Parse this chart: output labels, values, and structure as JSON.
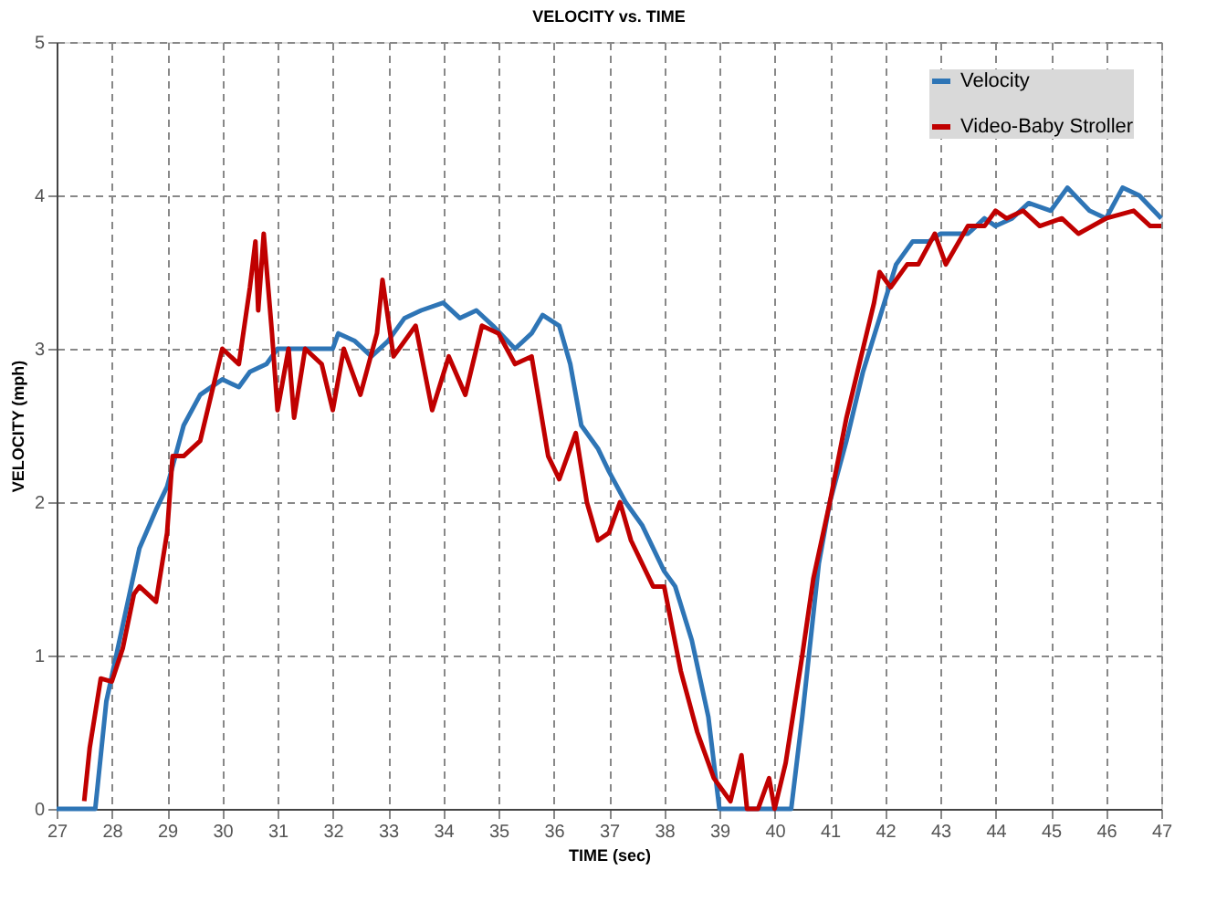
{
  "chart_data": {
    "type": "line",
    "title": "VELOCITY vs. TIME",
    "xlabel": "TIME (sec)",
    "ylabel": "VELOCITY (mph)",
    "xlim": [
      27,
      47
    ],
    "xticks": [
      27,
      28,
      29,
      30,
      31,
      32,
      33,
      34,
      35,
      36,
      37,
      38,
      39,
      40,
      41,
      42,
      43,
      44,
      45,
      46,
      47
    ],
    "ylim": [
      0,
      5
    ],
    "yticks": [
      0,
      1,
      2,
      3,
      4,
      5
    ],
    "grid": true,
    "legend": "top right",
    "line_style": "solid",
    "series": [
      {
        "name": "Velocity",
        "color": "#2e75b6",
        "x": [
          27,
          27.7,
          27.9,
          28.2,
          28.5,
          28.8,
          29.0,
          29.3,
          29.6,
          30.0,
          30.3,
          30.5,
          30.8,
          31.0,
          31.5,
          32.0,
          32.1,
          32.4,
          32.7,
          33.0,
          33.3,
          33.6,
          34.0,
          34.3,
          34.6,
          34.9,
          35.3,
          35.6,
          35.8,
          36.1,
          36.3,
          36.5,
          36.8,
          37.0,
          37.3,
          37.6,
          38.0,
          38.2,
          38.5,
          38.8,
          39.0,
          40.3,
          40.5,
          40.8,
          41.0,
          41.3,
          41.6,
          41.9,
          42.2,
          42.5,
          42.8,
          43.0,
          43.5,
          43.8,
          44.0,
          44.3,
          44.6,
          45.0,
          45.3,
          45.7,
          46.0,
          46.3,
          46.6,
          47
        ],
        "values": [
          0,
          0,
          0.7,
          1.2,
          1.7,
          1.95,
          2.1,
          2.5,
          2.7,
          2.8,
          2.75,
          2.85,
          2.9,
          3.0,
          3.0,
          3.0,
          3.1,
          3.05,
          2.95,
          3.05,
          3.2,
          3.25,
          3.3,
          3.2,
          3.25,
          3.15,
          3.0,
          3.1,
          3.22,
          3.15,
          2.9,
          2.5,
          2.35,
          2.2,
          2.0,
          1.85,
          1.55,
          1.45,
          1.1,
          0.6,
          0,
          0,
          0.6,
          1.6,
          2.0,
          2.4,
          2.85,
          3.2,
          3.55,
          3.7,
          3.7,
          3.75,
          3.75,
          3.85,
          3.8,
          3.85,
          3.95,
          3.9,
          4.05,
          3.9,
          3.85,
          4.05,
          4.0,
          3.85
        ]
      },
      {
        "name": "Video-Baby Stroller",
        "color": "#c00000",
        "x": [
          27.5,
          27.6,
          27.8,
          28.0,
          28.2,
          28.4,
          28.5,
          28.8,
          29.0,
          29.1,
          29.3,
          29.6,
          29.8,
          30.0,
          30.3,
          30.5,
          30.6,
          30.65,
          30.75,
          30.9,
          31.0,
          31.2,
          31.3,
          31.5,
          31.8,
          32.0,
          32.2,
          32.5,
          32.8,
          32.9,
          33.1,
          33.5,
          33.8,
          34.1,
          34.4,
          34.7,
          35.0,
          35.3,
          35.6,
          35.9,
          36.1,
          36.4,
          36.6,
          36.8,
          37.0,
          37.2,
          37.4,
          37.8,
          38.0,
          38.3,
          38.6,
          38.9,
          39.1,
          39.2,
          39.4,
          39.5,
          39.7,
          39.9,
          40.0,
          40.2,
          40.5,
          40.7,
          41.0,
          41.3,
          41.6,
          41.8,
          41.9,
          42.1,
          42.4,
          42.6,
          42.9,
          43.1,
          43.5,
          43.8,
          44.0,
          44.2,
          44.5,
          44.8,
          45.2,
          45.5,
          46.0,
          46.5,
          46.8,
          47
        ],
        "values": [
          0.05,
          0.4,
          0.85,
          0.83,
          1.05,
          1.4,
          1.45,
          1.35,
          1.8,
          2.3,
          2.3,
          2.4,
          2.7,
          3.0,
          2.9,
          3.4,
          3.7,
          3.25,
          3.75,
          3.1,
          2.6,
          3.0,
          2.55,
          3.0,
          2.9,
          2.6,
          3.0,
          2.7,
          3.1,
          3.45,
          2.95,
          3.15,
          2.6,
          2.95,
          2.7,
          3.15,
          3.1,
          2.9,
          2.95,
          2.3,
          2.15,
          2.45,
          2.0,
          1.75,
          1.8,
          2.0,
          1.75,
          1.45,
          1.45,
          0.9,
          0.5,
          0.2,
          0.1,
          0.05,
          0.35,
          0,
          0,
          0.2,
          0,
          0.3,
          1.0,
          1.5,
          2.0,
          2.55,
          3.0,
          3.3,
          3.5,
          3.4,
          3.55,
          3.55,
          3.75,
          3.55,
          3.8,
          3.8,
          3.9,
          3.85,
          3.9,
          3.8,
          3.85,
          3.75,
          3.85,
          3.9,
          3.8,
          3.8
        ]
      }
    ]
  }
}
